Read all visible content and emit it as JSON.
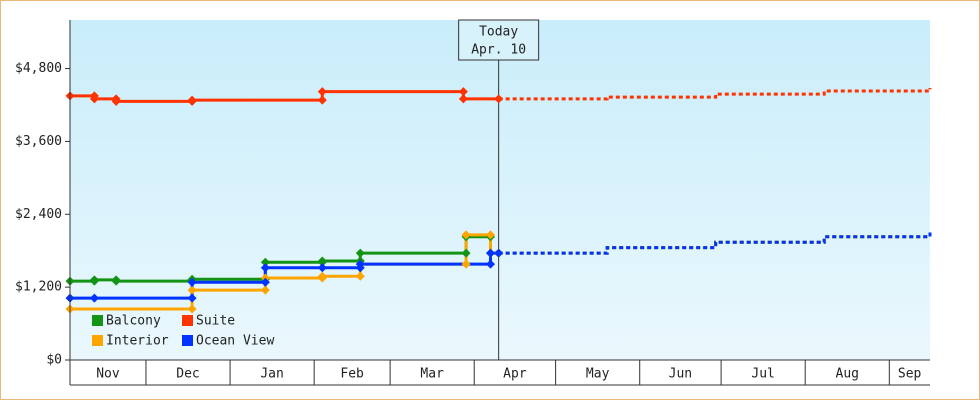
{
  "chart_data": {
    "type": "step-line",
    "yticks": [
      {
        "value": 0,
        "label": "$0"
      },
      {
        "value": 1200,
        "label": "$1,200"
      },
      {
        "value": 2400,
        "label": "$2,400"
      },
      {
        "value": 3600,
        "label": "$3,600"
      },
      {
        "value": 4800,
        "label": "$4,800"
      }
    ],
    "ylim": [
      0,
      5600
    ],
    "xlim": [
      2,
      319
    ],
    "xticks": [
      {
        "value": 0,
        "label": "Nov"
      },
      {
        "value": 30,
        "label": "Dec"
      },
      {
        "value": 61,
        "label": "Jan"
      },
      {
        "value": 92,
        "label": "Feb"
      },
      {
        "value": 120,
        "label": "Mar"
      },
      {
        "value": 151,
        "label": "Apr"
      },
      {
        "value": 181,
        "label": "May"
      },
      {
        "value": 212,
        "label": "Jun"
      },
      {
        "value": 242,
        "label": "Jul"
      },
      {
        "value": 273,
        "label": "Aug"
      },
      {
        "value": 304,
        "label": "Sep"
      }
    ],
    "annotation": {
      "x": 160,
      "lines": [
        "Today",
        "Apr. 10"
      ]
    },
    "legend": "bottom-left",
    "series": [
      {
        "name": "Balcony",
        "color": "#149414",
        "x": [
          2,
          11,
          19,
          47,
          74,
          95,
          109,
          148,
          157,
          160,
          200,
          240,
          280,
          319
        ],
        "values": [
          1300,
          1320,
          1300,
          1330,
          1610,
          1630,
          1760,
          2030,
          1760,
          1760,
          1850,
          1940,
          2030,
          2120
        ]
      },
      {
        "name": "Suite",
        "color": "#ff3300",
        "x": [
          2,
          11,
          19,
          47,
          95,
          147,
          160,
          200,
          240,
          280,
          319
        ],
        "values": [
          4350,
          4300,
          4260,
          4280,
          4420,
          4300,
          4300,
          4330,
          4380,
          4430,
          4480
        ]
      },
      {
        "name": "Interior",
        "color": "#ffa500",
        "x": [
          2,
          47,
          74,
          95,
          109,
          148,
          157,
          160,
          200,
          240,
          280,
          319
        ],
        "values": [
          840,
          1150,
          1350,
          1380,
          1580,
          2060,
          1760,
          1760,
          1850,
          1940,
          2030,
          2120
        ]
      },
      {
        "name": "Ocean View",
        "color": "#0033ff",
        "x": [
          2,
          11,
          47,
          74,
          95,
          109,
          157,
          160,
          200,
          240,
          280,
          319
        ],
        "values": [
          1020,
          1020,
          1280,
          1520,
          1520,
          1580,
          1760,
          1760,
          1850,
          1940,
          2030,
          2120
        ]
      }
    ]
  }
}
